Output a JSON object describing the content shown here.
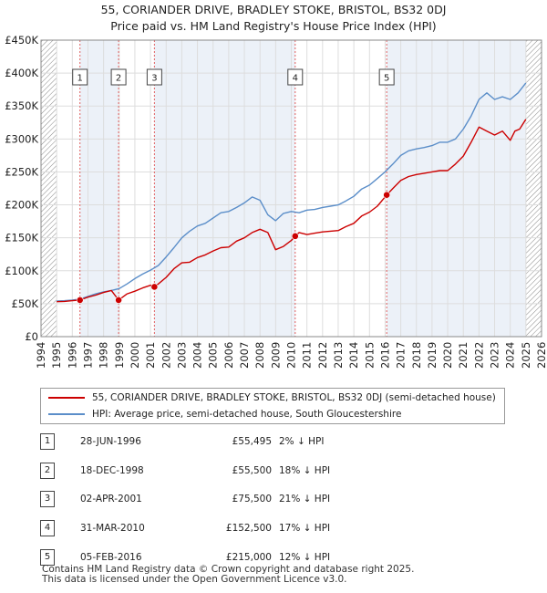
{
  "title_line1": "55, CORIANDER DRIVE, BRADLEY STOKE, BRISTOL, BS32 0DJ",
  "title_line2": "Price paid vs. HM Land Registry's House Price Index (HPI)",
  "colors": {
    "price": "#cc0000",
    "hpi": "#5b8ec9",
    "shade": "#dce6f3",
    "grid": "#dddddd",
    "hatch": "#777777"
  },
  "chart_data": {
    "type": "line",
    "title": "55, CORIANDER DRIVE, BRADLEY STOKE, BRISTOL, BS32 0DJ — Price paid vs. HM Land Registry's House Price Index (HPI)",
    "xlabel": "",
    "ylabel": "",
    "xlim": [
      1994,
      2026
    ],
    "ylim": [
      0,
      450000
    ],
    "y_ticks": [
      0,
      50000,
      100000,
      150000,
      200000,
      250000,
      300000,
      350000,
      400000,
      450000
    ],
    "y_tick_labels": [
      "£0",
      "£50K",
      "£100K",
      "£150K",
      "£200K",
      "£250K",
      "£300K",
      "£350K",
      "£400K",
      "£450K"
    ],
    "x_ticks": [
      1994,
      1995,
      1996,
      1997,
      1998,
      1999,
      2000,
      2001,
      2002,
      2003,
      2004,
      2005,
      2006,
      2007,
      2008,
      2009,
      2010,
      2011,
      2012,
      2013,
      2014,
      2015,
      2016,
      2017,
      2018,
      2019,
      2020,
      2021,
      2022,
      2023,
      2024,
      2025,
      2026
    ],
    "data_start": 1995.0,
    "data_end": 2025.0,
    "series": [
      {
        "name": "55, CORIANDER DRIVE, BRADLEY STOKE, BRISTOL, BS32 0DJ (semi-detached house)",
        "color": "#cc0000",
        "x": [
          1995.0,
          1995.5,
          1996.0,
          1996.49,
          1997.0,
          1997.5,
          1998.0,
          1998.5,
          1998.96,
          1999.5,
          2000.0,
          2000.5,
          2001.0,
          2001.25,
          2001.5,
          2002.0,
          2002.5,
          2003.0,
          2003.5,
          2004.0,
          2004.5,
          2005.0,
          2005.5,
          2006.0,
          2006.5,
          2007.0,
          2007.5,
          2008.0,
          2008.5,
          2009.0,
          2009.5,
          2010.0,
          2010.25,
          2010.5,
          2011.0,
          2011.5,
          2012.0,
          2012.5,
          2013.0,
          2013.5,
          2014.0,
          2014.5,
          2015.0,
          2015.5,
          2016.1,
          2016.5,
          2017.0,
          2017.5,
          2018.0,
          2018.5,
          2019.0,
          2019.5,
          2020.0,
          2020.5,
          2021.0,
          2021.5,
          2022.0,
          2022.5,
          2023.0,
          2023.5,
          2024.0,
          2024.3,
          2024.6,
          2025.0
        ],
        "values": [
          53000,
          53500,
          54500,
          55495,
          60000,
          63000,
          67000,
          70000,
          55500,
          65000,
          69000,
          74000,
          78000,
          75500,
          80000,
          90000,
          103000,
          112000,
          113000,
          120000,
          124000,
          130000,
          135000,
          136000,
          145000,
          150000,
          158000,
          163000,
          158000,
          132000,
          137000,
          146000,
          152500,
          158000,
          155000,
          157000,
          159000,
          160000,
          161000,
          167000,
          172000,
          183000,
          189000,
          198000,
          215000,
          225000,
          237000,
          243000,
          246000,
          248000,
          250000,
          252000,
          252000,
          262000,
          274000,
          295000,
          318000,
          312000,
          306000,
          312000,
          298000,
          312000,
          315000,
          330000
        ]
      },
      {
        "name": "HPI: Average price, semi-detached house, South Gloucestershire",
        "color": "#5b8ec9",
        "x": [
          1995.0,
          1995.5,
          1996.0,
          1996.5,
          1997.0,
          1997.5,
          1998.0,
          1998.5,
          1999.0,
          1999.5,
          2000.0,
          2000.5,
          2001.0,
          2001.5,
          2002.0,
          2002.5,
          2003.0,
          2003.5,
          2004.0,
          2004.5,
          2005.0,
          2005.5,
          2006.0,
          2006.5,
          2007.0,
          2007.5,
          2008.0,
          2008.5,
          2009.0,
          2009.5,
          2010.0,
          2010.5,
          2011.0,
          2011.5,
          2012.0,
          2012.5,
          2013.0,
          2013.5,
          2014.0,
          2014.5,
          2015.0,
          2015.5,
          2016.0,
          2016.5,
          2017.0,
          2017.5,
          2018.0,
          2018.5,
          2019.0,
          2019.5,
          2020.0,
          2020.5,
          2021.0,
          2021.5,
          2022.0,
          2022.5,
          2023.0,
          2023.5,
          2024.0,
          2024.5,
          2025.0
        ],
        "values": [
          54000,
          54500,
          55500,
          57000,
          61000,
          65000,
          68000,
          70000,
          73000,
          80000,
          88000,
          95000,
          101000,
          108000,
          121000,
          135000,
          150000,
          160000,
          168000,
          172000,
          180000,
          188000,
          190000,
          196000,
          203000,
          212000,
          207000,
          185000,
          176000,
          187000,
          190000,
          188000,
          192000,
          193000,
          196000,
          198000,
          200000,
          206000,
          213000,
          224000,
          230000,
          240000,
          250000,
          262000,
          275000,
          282000,
          285000,
          287000,
          290000,
          295000,
          295000,
          300000,
          315000,
          335000,
          360000,
          370000,
          360000,
          364000,
          360000,
          370000,
          385000
        ]
      }
    ],
    "sales": [
      {
        "n": "1",
        "x": 1996.49,
        "price": 55495
      },
      {
        "n": "2",
        "x": 1998.96,
        "price": 55500
      },
      {
        "n": "3",
        "x": 2001.25,
        "price": 75500
      },
      {
        "n": "4",
        "x": 2010.25,
        "price": 152500
      },
      {
        "n": "5",
        "x": 2016.1,
        "price": 215000
      }
    ]
  },
  "legend": {
    "price_label": "55, CORIANDER DRIVE, BRADLEY STOKE, BRISTOL, BS32 0DJ (semi-detached house)",
    "hpi_label": "HPI: Average price, semi-detached house, South Gloucestershire"
  },
  "sales_table": [
    {
      "n": "1",
      "date": "28-JUN-1996",
      "price": "£55,495",
      "hpi": "2% ↓ HPI"
    },
    {
      "n": "2",
      "date": "18-DEC-1998",
      "price": "£55,500",
      "hpi": "18% ↓ HPI"
    },
    {
      "n": "3",
      "date": "02-APR-2001",
      "price": "£75,500",
      "hpi": "21% ↓ HPI"
    },
    {
      "n": "4",
      "date": "31-MAR-2010",
      "price": "£152,500",
      "hpi": "17% ↓ HPI"
    },
    {
      "n": "5",
      "date": "05-FEB-2016",
      "price": "£215,000",
      "hpi": "12% ↓ HPI"
    }
  ],
  "footer": {
    "line1": "Contains HM Land Registry data © Crown copyright and database right 2025.",
    "line2": "This data is licensed under the Open Government Licence v3.0."
  }
}
